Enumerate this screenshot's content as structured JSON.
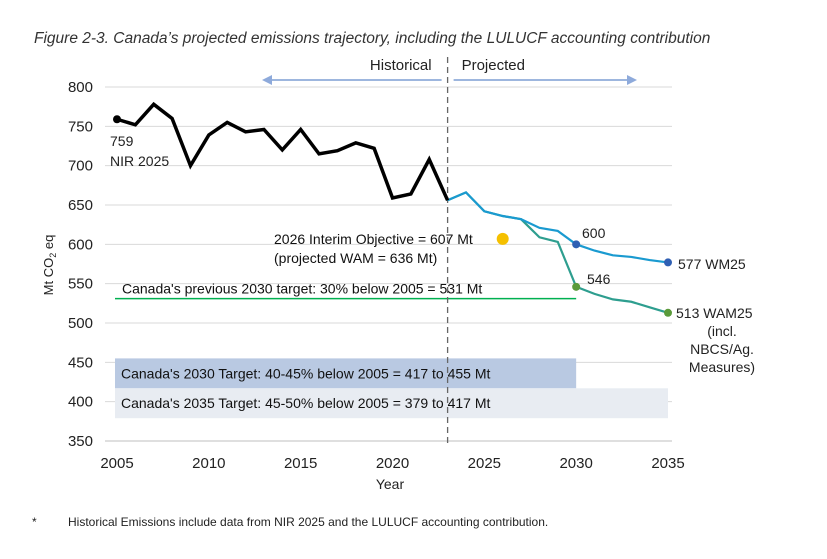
{
  "chart_data": {
    "type": "line",
    "title": "Figure 2-3. Canada’s projected emissions trajectory, including the LULUCF accounting contribution",
    "xlabel": "Year",
    "ylabel": "Mt CO2 eq",
    "ylabel_main": "Mt CO",
    "ylabel_sub": "2",
    "ylabel_tail": " eq",
    "xlim": [
      2005,
      2035
    ],
    "ylim": [
      350,
      800
    ],
    "xticks": [
      "2005",
      "2010",
      "2015",
      "2020",
      "2025",
      "2030",
      "2035"
    ],
    "yticks": [
      "350",
      "400",
      "450",
      "500",
      "550",
      "600",
      "650",
      "700",
      "750",
      "800"
    ],
    "grid": "horizontal",
    "period_labels": {
      "historical": "Historical",
      "projected": "Projected",
      "divider_year": 2023
    },
    "series": [
      {
        "key": "historical",
        "color": "#000000",
        "x": [
          2005,
          2006,
          2007,
          2008,
          2009,
          2010,
          2011,
          2012,
          2013,
          2014,
          2015,
          2016,
          2017,
          2018,
          2019,
          2020,
          2021,
          2022,
          2023
        ],
        "values": [
          759,
          752,
          778,
          760,
          700,
          739,
          755,
          743,
          746,
          720,
          746,
          715,
          719,
          729,
          722,
          659,
          664,
          708,
          656
        ]
      },
      {
        "key": "wm25",
        "name": "577 WM25",
        "color": "#1a9ad0",
        "x": [
          2023,
          2024,
          2025,
          2026,
          2027,
          2028,
          2029,
          2030,
          2031,
          2032,
          2033,
          2034,
          2035
        ],
        "values": [
          656,
          666,
          642,
          636,
          632,
          621,
          617,
          600,
          592,
          586,
          584,
          580,
          577
        ]
      },
      {
        "key": "wam25",
        "name": "513 WAM25",
        "color": "#2e9e8f",
        "x": [
          2023,
          2024,
          2025,
          2026,
          2027,
          2028,
          2029,
          2030,
          2031,
          2032,
          2033,
          2034,
          2035
        ],
        "values": [
          656,
          666,
          642,
          636,
          632,
          609,
          603,
          546,
          537,
          530,
          527,
          520,
          513
        ]
      }
    ],
    "annotations": {
      "start_value": "759",
      "start_label": "NIR 2025",
      "wm_2030": "600",
      "wam_2030": "546",
      "wm_end": "577 WM25",
      "wam_end": [
        "513 WAM25",
        "(incl.",
        "NBCS/Ag.",
        "Measures)"
      ],
      "interim": {
        "year": 2026,
        "value": 607,
        "color": "#f5c000",
        "line1": "2026 Interim Objective = 607 Mt",
        "line2": "(projected WAM = 636 Mt)"
      },
      "prev_target": {
        "value": 531,
        "color": "#00b050",
        "label": "Canada's previous 2030 target: 30% below 2005 = 531 Mt"
      },
      "target_2030": {
        "low": 417,
        "high": 455,
        "color": "#b9c9e2",
        "label": "Canada's 2030 Target: 40-45% below 2005 =  417 to 455 Mt"
      },
      "target_2035": {
        "low": 379,
        "high": 417,
        "color": "#e8ecf2",
        "label": "Canada's 2035 Target: 45-50% below 2005 =  379 to 417 Mt"
      }
    }
  },
  "footnote": {
    "marker": "*",
    "text": "Historical Emissions include data from NIR 2025 and the LULUCF accounting contribution."
  }
}
